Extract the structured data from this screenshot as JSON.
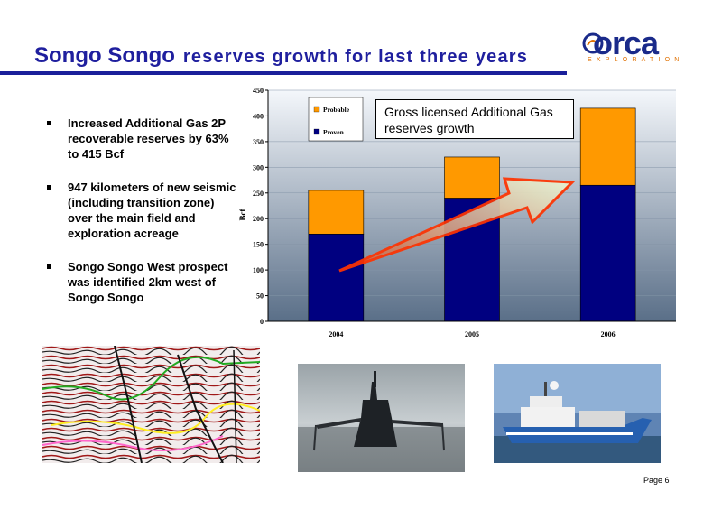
{
  "title": {
    "part1": "Songo Songo",
    "part2": "reserves growth for last three years"
  },
  "logo": {
    "word": "orca",
    "subtitle": "EXPLORATION"
  },
  "bullets": [
    "Increased Additional Gas 2P recoverable reserves by 63% to 415 Bcf",
    "947 kilometers of new seismic (including transition zone) over the main field and exploration acreage",
    "Songo Songo West prospect was identified 2km west of Songo Songo"
  ],
  "callout": "Gross licensed Additional Gas reserves growth",
  "chart_data": {
    "type": "bar",
    "stacked": true,
    "categories": [
      "2004",
      "2005",
      "2006"
    ],
    "series": [
      {
        "name": "Proven",
        "values": [
          170,
          240,
          265
        ],
        "color": "#000080"
      },
      {
        "name": "Probable",
        "values": [
          85,
          80,
          150
        ],
        "color": "#ff9900"
      }
    ],
    "ylabel": "Bcf",
    "ylim": [
      0,
      450
    ],
    "yticks": [
      "0",
      "50",
      "100",
      "150",
      "200",
      "250",
      "300",
      "350",
      "400",
      "450"
    ],
    "legend": {
      "position": "top-left",
      "entries": [
        "Probable",
        "Proven"
      ]
    },
    "grid": true,
    "background": "gradient blue",
    "annotation": "upward growth arrow"
  },
  "images": [
    {
      "icon": "seismic-section-image"
    },
    {
      "icon": "ship-silhouette-image"
    },
    {
      "icon": "survey-vessel-image"
    }
  ],
  "footer": {
    "page": "Page 6"
  }
}
